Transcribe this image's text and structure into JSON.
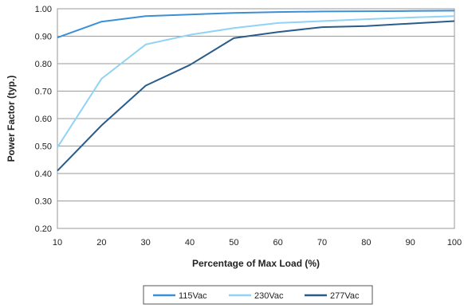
{
  "chart_data": {
    "type": "line",
    "x": [
      10,
      20,
      30,
      40,
      50,
      60,
      70,
      80,
      90,
      100
    ],
    "xlabel": "Percentage of Max Load (%)",
    "ylabel": "Power Factor (typ.)",
    "xlim": [
      10,
      100
    ],
    "ylim": [
      0.2,
      1.0
    ],
    "x_ticks": [
      "10",
      "20",
      "30",
      "40",
      "50",
      "60",
      "70",
      "80",
      "90",
      "100"
    ],
    "y_ticks": [
      "0.20",
      "0.30",
      "0.40",
      "0.50",
      "0.60",
      "0.70",
      "0.80",
      "0.90",
      "1.00"
    ],
    "grid": "horizontal",
    "legend_position": "bottom",
    "series": [
      {
        "name": "115Vac",
        "color": "#3b8fd6",
        "values": [
          0.895,
          0.953,
          0.973,
          0.979,
          0.985,
          0.988,
          0.99,
          0.991,
          0.992,
          0.993
        ]
      },
      {
        "name": "230Vac",
        "color": "#8fd3f5",
        "values": [
          0.495,
          0.745,
          0.87,
          0.905,
          0.93,
          0.948,
          0.955,
          0.962,
          0.968,
          0.973
        ]
      },
      {
        "name": "277Vac",
        "color": "#2a5c8a",
        "values": [
          0.41,
          0.575,
          0.72,
          0.795,
          0.893,
          0.915,
          0.933,
          0.937,
          0.946,
          0.955
        ]
      }
    ]
  }
}
